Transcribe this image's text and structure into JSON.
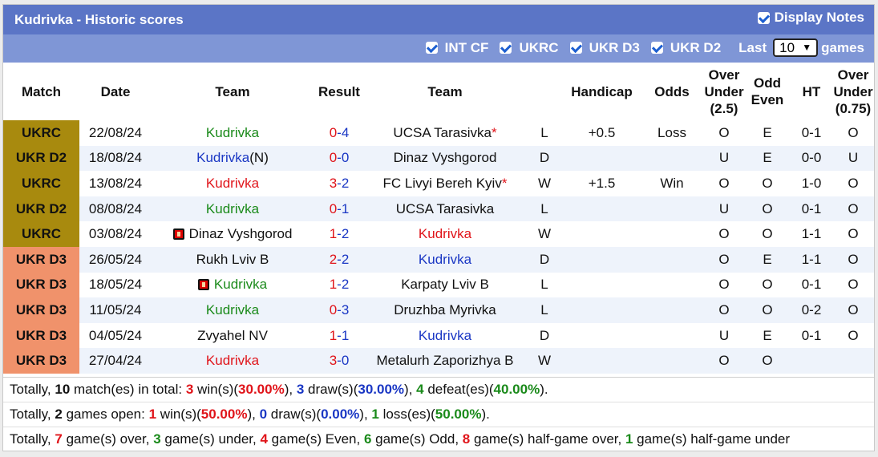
{
  "header": {
    "title": "Kudrivka - Historic scores",
    "display_notes_label": "Display Notes",
    "display_notes_checked": true
  },
  "filters": {
    "items": [
      {
        "label": "INT CF",
        "checked": true
      },
      {
        "label": "UKRC",
        "checked": true
      },
      {
        "label": "UKR D3",
        "checked": true
      },
      {
        "label": "UKR D2",
        "checked": true
      }
    ],
    "last_label": "Last",
    "last_value": "10",
    "games_label": "games"
  },
  "columns": {
    "match": "Match",
    "date": "Date",
    "team": "Team",
    "result": "Result",
    "team2": "Team",
    "handicap": "Handicap",
    "odds": "Odds",
    "over_under_25": [
      "Over",
      "Under",
      "(2.5)"
    ],
    "odd_even": [
      "Odd",
      "Even"
    ],
    "ht": "HT",
    "over_under_075": [
      "Over",
      "Under",
      "(0.75)"
    ]
  },
  "matches": [
    {
      "comp": "UKRC",
      "date": "22/08/24",
      "home": "Kudrivka",
      "home_color": "green",
      "home_card": false,
      "score_h": "0",
      "score_a": "4",
      "away": "UCSA Tarasivka",
      "away_color": "black",
      "away_star": true,
      "wl": "L",
      "wl_color": "green",
      "handicap": "+0.5",
      "odds": "Loss",
      "odds_color": "green",
      "ou": "O",
      "ou_color": "red",
      "oe": "E",
      "oe_color": "red",
      "ht": "0-1",
      "ht_ou": "O",
      "ht_ou_color": "red"
    },
    {
      "comp": "UKR D2",
      "date": "18/08/24",
      "home": "Kudrivka",
      "home_suffix": "(N)",
      "home_color": "blue",
      "home_card": false,
      "score_h": "0",
      "score_a": "0",
      "away": "Dinaz Vyshgorod",
      "away_color": "black",
      "away_star": false,
      "wl": "D",
      "wl_color": "blue",
      "handicap": "",
      "odds": "",
      "odds_color": "black",
      "ou": "U",
      "ou_color": "green",
      "oe": "E",
      "oe_color": "red",
      "ht": "0-0",
      "ht_ou": "U",
      "ht_ou_color": "green"
    },
    {
      "comp": "UKRC",
      "date": "13/08/24",
      "home": "Kudrivka",
      "home_color": "red",
      "home_card": false,
      "score_h": "3",
      "score_a": "2",
      "away": "FC Livyi Bereh Kyiv",
      "away_color": "black",
      "away_star": true,
      "wl": "W",
      "wl_color": "red",
      "handicap": "+1.5",
      "odds": "Win",
      "odds_color": "red",
      "ou": "O",
      "ou_color": "red",
      "oe": "O",
      "oe_color": "green",
      "ht": "1-0",
      "ht_ou": "O",
      "ht_ou_color": "red"
    },
    {
      "comp": "UKR D2",
      "date": "08/08/24",
      "home": "Kudrivka",
      "home_color": "green",
      "home_card": false,
      "score_h": "0",
      "score_a": "1",
      "away": "UCSA Tarasivka",
      "away_color": "black",
      "away_star": false,
      "wl": "L",
      "wl_color": "green",
      "handicap": "",
      "odds": "",
      "odds_color": "black",
      "ou": "U",
      "ou_color": "green",
      "oe": "O",
      "oe_color": "green",
      "ht": "0-1",
      "ht_ou": "O",
      "ht_ou_color": "red"
    },
    {
      "comp": "UKRC",
      "date": "03/08/24",
      "home": "Dinaz Vyshgorod",
      "home_color": "black",
      "home_card": true,
      "score_h": "1",
      "score_a": "2",
      "away": "Kudrivka",
      "away_color": "red",
      "away_star": false,
      "wl": "W",
      "wl_color": "red",
      "handicap": "",
      "odds": "",
      "odds_color": "black",
      "ou": "O",
      "ou_color": "red",
      "oe": "O",
      "oe_color": "green",
      "ht": "1-1",
      "ht_ou": "O",
      "ht_ou_color": "red"
    },
    {
      "comp": "UKR D3",
      "date": "26/05/24",
      "home": "Rukh Lviv B",
      "home_color": "black",
      "home_card": false,
      "score_h": "2",
      "score_a": "2",
      "away": "Kudrivka",
      "away_color": "blue",
      "away_star": false,
      "wl": "D",
      "wl_color": "blue",
      "handicap": "",
      "odds": "",
      "odds_color": "black",
      "ou": "O",
      "ou_color": "red",
      "oe": "E",
      "oe_color": "red",
      "ht": "1-1",
      "ht_ou": "O",
      "ht_ou_color": "red"
    },
    {
      "comp": "UKR D3",
      "date": "18/05/24",
      "home": "Kudrivka",
      "home_color": "green",
      "home_card": true,
      "score_h": "1",
      "score_a": "2",
      "away": "Karpaty Lviv B",
      "away_color": "black",
      "away_star": false,
      "wl": "L",
      "wl_color": "green",
      "handicap": "",
      "odds": "",
      "odds_color": "black",
      "ou": "O",
      "ou_color": "red",
      "oe": "O",
      "oe_color": "green",
      "ht": "0-1",
      "ht_ou": "O",
      "ht_ou_color": "red"
    },
    {
      "comp": "UKR D3",
      "date": "11/05/24",
      "home": "Kudrivka",
      "home_color": "green",
      "home_card": false,
      "score_h": "0",
      "score_a": "3",
      "away": "Druzhba Myrivka",
      "away_color": "black",
      "away_star": false,
      "wl": "L",
      "wl_color": "green",
      "handicap": "",
      "odds": "",
      "odds_color": "black",
      "ou": "O",
      "ou_color": "red",
      "oe": "O",
      "oe_color": "green",
      "ht": "0-2",
      "ht_ou": "O",
      "ht_ou_color": "red"
    },
    {
      "comp": "UKR D3",
      "date": "04/05/24",
      "home": "Zvyahel NV",
      "home_color": "black",
      "home_card": false,
      "score_h": "1",
      "score_a": "1",
      "away": "Kudrivka",
      "away_color": "blue",
      "away_star": false,
      "wl": "D",
      "wl_color": "blue",
      "handicap": "",
      "odds": "",
      "odds_color": "black",
      "ou": "U",
      "ou_color": "green",
      "oe": "E",
      "oe_color": "red",
      "ht": "0-1",
      "ht_ou": "O",
      "ht_ou_color": "red"
    },
    {
      "comp": "UKR D3",
      "date": "27/04/24",
      "home": "Kudrivka",
      "home_color": "red",
      "home_card": false,
      "score_h": "3",
      "score_a": "0",
      "away": "Metalurh Zaporizhya B",
      "away_color": "black",
      "away_star": false,
      "wl": "W",
      "wl_color": "red",
      "handicap": "",
      "odds": "",
      "odds_color": "black",
      "ou": "O",
      "ou_color": "red",
      "oe": "O",
      "oe_color": "green",
      "ht": "",
      "ht_ou": "",
      "ht_ou_color": "black"
    }
  ],
  "summary": [
    [
      {
        "t": "Totally, "
      },
      {
        "t": "10",
        "b": true
      },
      {
        "t": " match(es) in total: "
      },
      {
        "t": "3",
        "b": true,
        "c": "red"
      },
      {
        "t": " win(s)("
      },
      {
        "t": "30.00%",
        "b": true,
        "c": "red"
      },
      {
        "t": "), "
      },
      {
        "t": "3",
        "b": true,
        "c": "blue"
      },
      {
        "t": " draw(s)("
      },
      {
        "t": "30.00%",
        "b": true,
        "c": "blue"
      },
      {
        "t": "), "
      },
      {
        "t": "4",
        "b": true,
        "c": "green"
      },
      {
        "t": " defeat(es)("
      },
      {
        "t": "40.00%",
        "b": true,
        "c": "green"
      },
      {
        "t": ")."
      }
    ],
    [
      {
        "t": "Totally, "
      },
      {
        "t": "2",
        "b": true
      },
      {
        "t": " games open: "
      },
      {
        "t": "1",
        "b": true,
        "c": "red"
      },
      {
        "t": " win(s)("
      },
      {
        "t": "50.00%",
        "b": true,
        "c": "red"
      },
      {
        "t": "), "
      },
      {
        "t": "0",
        "b": true,
        "c": "blue"
      },
      {
        "t": " draw(s)("
      },
      {
        "t": "0.00%",
        "b": true,
        "c": "blue"
      },
      {
        "t": "), "
      },
      {
        "t": "1",
        "b": true,
        "c": "green"
      },
      {
        "t": " loss(es)("
      },
      {
        "t": "50.00%",
        "b": true,
        "c": "green"
      },
      {
        "t": ")."
      }
    ],
    [
      {
        "t": "Totally, "
      },
      {
        "t": "7",
        "b": true,
        "c": "red"
      },
      {
        "t": " game(s) over, "
      },
      {
        "t": "3",
        "b": true,
        "c": "green"
      },
      {
        "t": " game(s) under, "
      },
      {
        "t": "4",
        "b": true,
        "c": "red"
      },
      {
        "t": " game(s) Even, "
      },
      {
        "t": "6",
        "b": true,
        "c": "green"
      },
      {
        "t": " game(s) Odd, "
      },
      {
        "t": "8",
        "b": true,
        "c": "red"
      },
      {
        "t": " game(s) half-game over, "
      },
      {
        "t": "1",
        "b": true,
        "c": "green"
      },
      {
        "t": " game(s) half-game under"
      }
    ]
  ]
}
